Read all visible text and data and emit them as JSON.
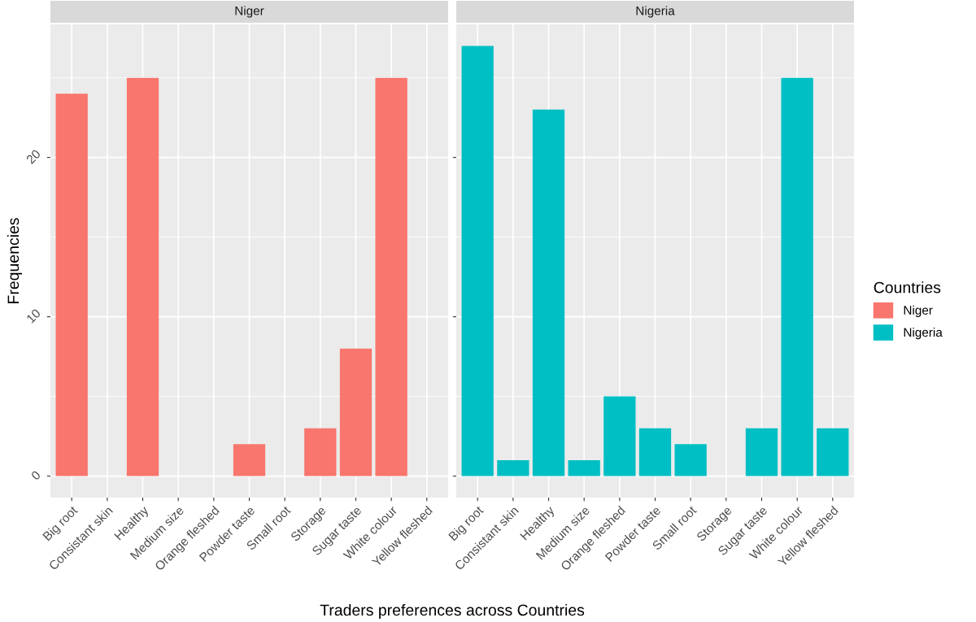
{
  "chart_data": [
    {
      "type": "bar",
      "title": "Niger",
      "ylabel": "Frequencies",
      "xlabel": "Traders preferences across Countries",
      "categories": [
        "Big root",
        "Consistant skin",
        "Healthy",
        "Medium size",
        "Orange fleshed",
        "Powder taste",
        "Small root",
        "Storage",
        "Sugar taste",
        "White colour",
        "Yellow fleshed"
      ],
      "series": [
        {
          "name": "Niger",
          "color": "#f8766d",
          "values": [
            24,
            null,
            25,
            null,
            null,
            2,
            null,
            3,
            8,
            25,
            null
          ]
        }
      ],
      "ylim": [
        -1.35,
        28.35
      ],
      "yticks": [
        0,
        10,
        20
      ],
      "grid": true
    },
    {
      "type": "bar",
      "title": "Nigeria",
      "legend_title": "Countries",
      "legend": "right",
      "tick_labels": "x",
      "categories": [
        "Big root",
        "Consistant skin",
        "Healthy",
        "Medium size",
        "Orange fleshed",
        "Powder taste",
        "Small root",
        "Storage",
        "Sugar taste",
        "White colour",
        "Yellow fleshed"
      ],
      "series": [
        {
          "name": "Nigeria",
          "color": "#00bfc4",
          "values": [
            27,
            1,
            23,
            1,
            5,
            3,
            2,
            null,
            3,
            25,
            3
          ]
        }
      ],
      "ylim": [
        -1.35,
        28.35
      ],
      "yticks": [
        0,
        10,
        20
      ],
      "grid": true
    }
  ]
}
